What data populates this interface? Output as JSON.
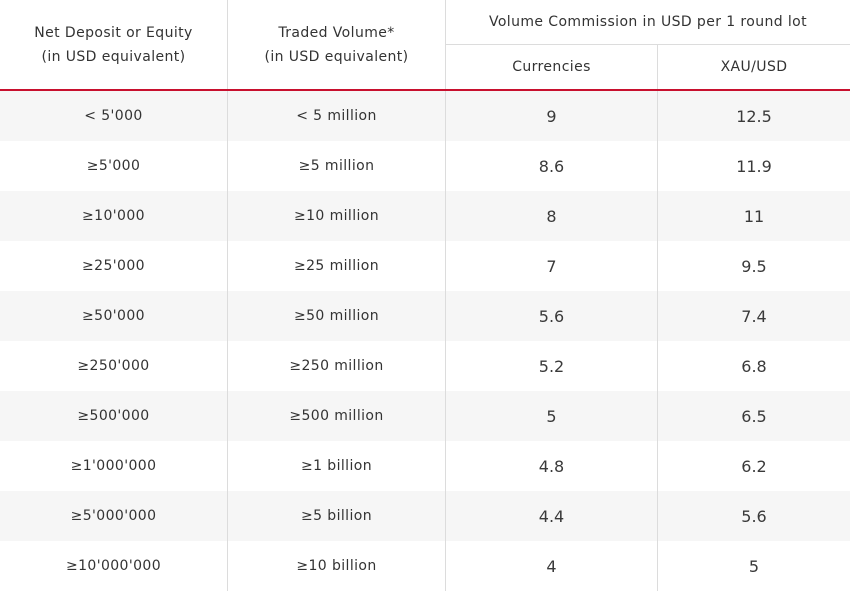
{
  "header": {
    "deposit_line1": "Net Deposit or Equity",
    "deposit_line2": "(in USD equivalent)",
    "volume_line1": "Traded Volume*",
    "volume_line2": "(in USD equivalent)",
    "commission_title": "Volume Commission in USD per 1 round lot",
    "currencies": "Currencies",
    "xauusd": "XAU/USD"
  },
  "accent_color": "#c8102e",
  "rows": [
    {
      "deposit": "< 5'000",
      "volume": "< 5 million",
      "currencies": "9",
      "xau": "12.5"
    },
    {
      "deposit": "≥5'000",
      "volume": "≥5 million",
      "currencies": "8.6",
      "xau": "11.9"
    },
    {
      "deposit": "≥10'000",
      "volume": "≥10 million",
      "currencies": "8",
      "xau": "11"
    },
    {
      "deposit": "≥25'000",
      "volume": "≥25 million",
      "currencies": "7",
      "xau": "9.5"
    },
    {
      "deposit": "≥50'000",
      "volume": "≥50 million",
      "currencies": "5.6",
      "xau": "7.4"
    },
    {
      "deposit": "≥250'000",
      "volume": "≥250 million",
      "currencies": "5.2",
      "xau": "6.8"
    },
    {
      "deposit": "≥500'000",
      "volume": "≥500 million",
      "currencies": "5",
      "xau": "6.5"
    },
    {
      "deposit": "≥1'000'000",
      "volume": "≥1 billion",
      "currencies": "4.8",
      "xau": "6.2"
    },
    {
      "deposit": "≥5'000'000",
      "volume": "≥5 billion",
      "currencies": "4.4",
      "xau": "5.6"
    },
    {
      "deposit": "≥10'000'000",
      "volume": "≥10 billion",
      "currencies": "4",
      "xau": "5"
    }
  ]
}
